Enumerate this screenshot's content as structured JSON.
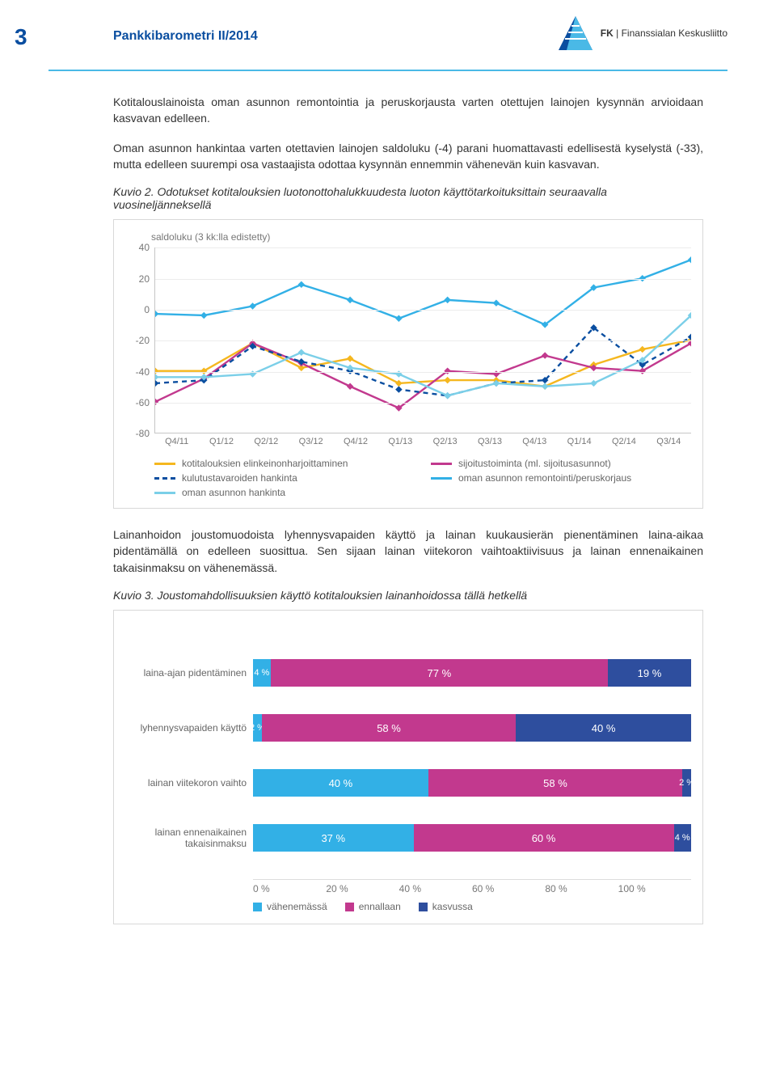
{
  "header": {
    "page_number": "3",
    "title": "Pankkibarometri II/2014",
    "org_prefix": "FK",
    "org_name": "Finanssialan Keskusliitto",
    "logo_colors": [
      "#0a4ea0",
      "#4ab9e6"
    ]
  },
  "paragraphs": {
    "p1": "Kotitalouslainoista oman asunnon remontointia ja peruskorjausta varten otettujen lainojen kysynnän arvioidaan kasvavan edelleen.",
    "p2": "Oman asunnon hankintaa varten otettavien lainojen saldoluku (-4) parani huomattavasti edellisestä kyselystä (-33), mutta edelleen suurempi osa vastaajista odottaa kysynnän ennemmin vähenevän kuin kasvavan.",
    "p3": "Lainanhoidon joustomuodoista lyhennysvapaiden käyttö ja lainan kuukausierän pienentäminen laina-aikaa pidentämällä on edelleen suosittua. Sen sijaan lainan viitekoron vaihtoaktiivisuus ja lainan ennenaikainen takaisinmaksu on vähenemässä."
  },
  "figure2": {
    "caption": "Kuvio 2. Odotukset kotitalouksien luotonottohalukkuudesta luoton käyttötarkoituksittain seuraavalla vuosineljänneksellä",
    "note": "saldoluku (3 kk:lla edistetty)",
    "ylim": [
      -80,
      40
    ],
    "yticks": [
      40,
      20,
      0,
      -20,
      -40,
      -60,
      -80
    ],
    "xticks": [
      "Q4/11",
      "Q1/12",
      "Q2/12",
      "Q3/12",
      "Q4/12",
      "Q1/13",
      "Q2/13",
      "Q3/13",
      "Q4/13",
      "Q1/14",
      "Q2/14",
      "Q3/14"
    ],
    "series": [
      {
        "name": "kotitalouksien elinkeinonharjoittaminen",
        "color": "#f5b71f",
        "dash": false,
        "values": [
          -40,
          -40,
          -22,
          -38,
          -32,
          -48,
          -46,
          -46,
          -50,
          -36,
          -26,
          -20
        ]
      },
      {
        "name": "sijoitustoiminta (ml. sijoitusasunnot)",
        "color": "#c2398e",
        "dash": false,
        "values": [
          -60,
          -45,
          -22,
          -35,
          -50,
          -64,
          -40,
          -42,
          -30,
          -38,
          -40,
          -22
        ]
      },
      {
        "name": "kulutustavaroiden hankinta",
        "color": "#0a4ea0",
        "dash": true,
        "values": [
          -48,
          -46,
          -24,
          -34,
          -40,
          -52,
          -56,
          -48,
          -46,
          -12,
          -36,
          -18
        ]
      },
      {
        "name": "oman asunnon remontointi/peruskorjaus",
        "color": "#32b0e6",
        "dash": false,
        "values": [
          -3,
          -4,
          2,
          16,
          6,
          -6,
          6,
          4,
          -10,
          14,
          20,
          32
        ]
      },
      {
        "name": "oman asunnon hankinta",
        "color": "#7bcfe8",
        "dash": false,
        "values": [
          -44,
          -44,
          -42,
          -28,
          -38,
          -42,
          -56,
          -48,
          -50,
          -48,
          -33,
          -4
        ]
      }
    ],
    "background_color": "#ffffff",
    "grid_color": "#ececec"
  },
  "figure3": {
    "caption": "Kuvio 3. Joustomahdollisuuksien käyttö kotitalouksien lainanhoidossa tällä hetkellä",
    "categories": [
      {
        "label": "laina-ajan pidentäminen",
        "segments": [
          4,
          77,
          19
        ]
      },
      {
        "label": "lyhennysvapaiden käyttö",
        "segments": [
          2,
          58,
          40
        ]
      },
      {
        "label": "lainan viitekoron vaihto",
        "segments": [
          40,
          58,
          2
        ]
      },
      {
        "label": "lainan ennenaikainen takaisinmaksu",
        "segments": [
          37,
          60,
          4
        ]
      }
    ],
    "segment_labels": [
      "vähenemässä",
      "ennallaan",
      "kasvussa"
    ],
    "segment_colors": [
      "#32b0e6",
      "#c2398e",
      "#2e4e9e"
    ],
    "xticks": [
      "0 %",
      "20 %",
      "40 %",
      "60 %",
      "80 %",
      "100 %"
    ]
  }
}
